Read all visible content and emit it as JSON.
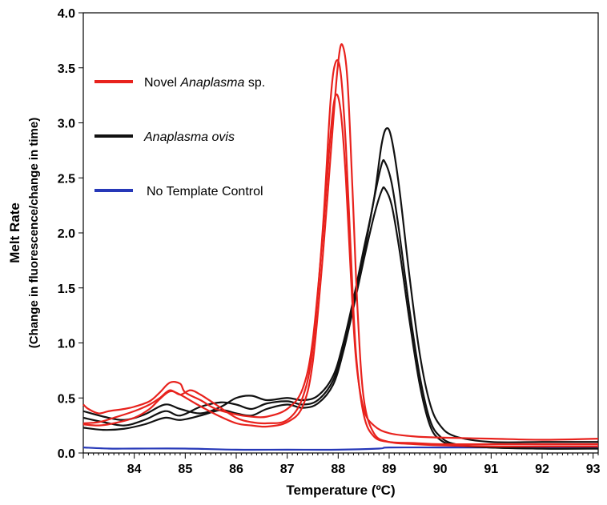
{
  "chart_data": {
    "type": "line",
    "title": "",
    "xlabel": "Temperature (ºC)",
    "ylabel_line1": "Melt Rate",
    "ylabel_line2": "(Change in fluorescence/change in time)",
    "xlim": [
      83.0,
      93.1
    ],
    "ylim": [
      0.0,
      4.0
    ],
    "x_ticks": [
      84,
      85,
      86,
      87,
      88,
      89,
      90,
      91,
      92,
      93
    ],
    "y_ticks": [
      0.0,
      0.5,
      1.0,
      1.5,
      2.0,
      2.5,
      3.0,
      3.5,
      4.0
    ],
    "y_tick_labels": [
      "0.0",
      "0.5",
      "1.0",
      "1.5",
      "2.0",
      "2.5",
      "3.0",
      "3.5",
      "4.0"
    ],
    "legend": [
      {
        "series_group": "novel",
        "label_pre": "Novel ",
        "label_italic": "Anaplasma",
        "label_post": " sp.",
        "color": "#e8221d"
      },
      {
        "series_group": "ovis",
        "label_pre": "",
        "label_italic": "Anaplasma ovis",
        "label_post": "",
        "color": "#111111"
      },
      {
        "series_group": "ntc",
        "label_pre": "No Template Control",
        "label_italic": "",
        "label_post": "",
        "color": "#2638b8"
      }
    ],
    "series": [
      {
        "name": "Novel Anaplasma sp. rep 1",
        "group": "novel",
        "color": "#e8221d",
        "points": [
          [
            83.0,
            0.44
          ],
          [
            83.1,
            0.4
          ],
          [
            83.3,
            0.36
          ],
          [
            83.5,
            0.38
          ],
          [
            83.8,
            0.4
          ],
          [
            84.0,
            0.42
          ],
          [
            84.3,
            0.47
          ],
          [
            84.5,
            0.55
          ],
          [
            84.7,
            0.64
          ],
          [
            84.9,
            0.63
          ],
          [
            85.0,
            0.55
          ],
          [
            85.3,
            0.48
          ],
          [
            85.6,
            0.4
          ],
          [
            86.0,
            0.35
          ],
          [
            86.3,
            0.33
          ],
          [
            86.6,
            0.33
          ],
          [
            87.0,
            0.4
          ],
          [
            87.3,
            0.58
          ],
          [
            87.5,
            1.02
          ],
          [
            87.7,
            2.0
          ],
          [
            87.85,
            2.9
          ],
          [
            87.95,
            3.25
          ],
          [
            88.05,
            3.1
          ],
          [
            88.15,
            2.5
          ],
          [
            88.25,
            1.6
          ],
          [
            88.35,
            0.85
          ],
          [
            88.5,
            0.4
          ],
          [
            88.7,
            0.25
          ],
          [
            89.0,
            0.18
          ],
          [
            89.5,
            0.15
          ],
          [
            90.0,
            0.14
          ],
          [
            91.0,
            0.13
          ],
          [
            92.0,
            0.12
          ],
          [
            93.1,
            0.13
          ]
        ]
      },
      {
        "name": "Novel Anaplasma sp. rep 2",
        "group": "novel",
        "color": "#e8221d",
        "points": [
          [
            83.0,
            0.27
          ],
          [
            83.3,
            0.28
          ],
          [
            83.6,
            0.32
          ],
          [
            84.0,
            0.38
          ],
          [
            84.3,
            0.44
          ],
          [
            84.5,
            0.5
          ],
          [
            84.7,
            0.57
          ],
          [
            84.9,
            0.53
          ],
          [
            85.1,
            0.57
          ],
          [
            85.3,
            0.53
          ],
          [
            85.6,
            0.44
          ],
          [
            86.0,
            0.32
          ],
          [
            86.3,
            0.28
          ],
          [
            86.6,
            0.27
          ],
          [
            87.0,
            0.3
          ],
          [
            87.3,
            0.5
          ],
          [
            87.5,
            0.95
          ],
          [
            87.7,
            2.05
          ],
          [
            87.85,
            3.2
          ],
          [
            87.95,
            3.55
          ],
          [
            88.05,
            3.45
          ],
          [
            88.15,
            2.8
          ],
          [
            88.25,
            1.8
          ],
          [
            88.35,
            0.9
          ],
          [
            88.5,
            0.35
          ],
          [
            88.7,
            0.15
          ],
          [
            89.0,
            0.1
          ],
          [
            89.5,
            0.09
          ],
          [
            90.0,
            0.08
          ],
          [
            91.0,
            0.08
          ],
          [
            92.0,
            0.08
          ],
          [
            93.1,
            0.08
          ]
        ]
      },
      {
        "name": "Novel Anaplasma sp. rep 3",
        "group": "novel",
        "color": "#e8221d",
        "points": [
          [
            83.0,
            0.26
          ],
          [
            83.3,
            0.25
          ],
          [
            83.6,
            0.27
          ],
          [
            84.0,
            0.32
          ],
          [
            84.3,
            0.4
          ],
          [
            84.5,
            0.49
          ],
          [
            84.7,
            0.56
          ],
          [
            84.9,
            0.53
          ],
          [
            85.2,
            0.45
          ],
          [
            85.6,
            0.35
          ],
          [
            86.0,
            0.27
          ],
          [
            86.3,
            0.25
          ],
          [
            86.6,
            0.24
          ],
          [
            87.0,
            0.28
          ],
          [
            87.3,
            0.42
          ],
          [
            87.5,
            0.82
          ],
          [
            87.7,
            1.8
          ],
          [
            87.9,
            3.0
          ],
          [
            88.0,
            3.55
          ],
          [
            88.08,
            3.71
          ],
          [
            88.18,
            3.4
          ],
          [
            88.28,
            2.4
          ],
          [
            88.38,
            1.3
          ],
          [
            88.5,
            0.5
          ],
          [
            88.7,
            0.18
          ],
          [
            89.0,
            0.1
          ],
          [
            89.5,
            0.08
          ],
          [
            90.0,
            0.07
          ],
          [
            91.0,
            0.06
          ],
          [
            92.0,
            0.06
          ],
          [
            93.1,
            0.06
          ]
        ]
      },
      {
        "name": "Anaplasma ovis rep 1",
        "group": "ovis",
        "color": "#111111",
        "points": [
          [
            83.0,
            0.38
          ],
          [
            83.4,
            0.33
          ],
          [
            83.8,
            0.3
          ],
          [
            84.2,
            0.35
          ],
          [
            84.6,
            0.44
          ],
          [
            84.9,
            0.4
          ],
          [
            85.3,
            0.36
          ],
          [
            85.7,
            0.42
          ],
          [
            86.0,
            0.5
          ],
          [
            86.3,
            0.52
          ],
          [
            86.6,
            0.48
          ],
          [
            87.0,
            0.5
          ],
          [
            87.3,
            0.48
          ],
          [
            87.6,
            0.52
          ],
          [
            87.9,
            0.7
          ],
          [
            88.1,
            1.0
          ],
          [
            88.3,
            1.4
          ],
          [
            88.5,
            1.85
          ],
          [
            88.7,
            2.3
          ],
          [
            88.85,
            2.8
          ],
          [
            88.95,
            2.95
          ],
          [
            89.05,
            2.85
          ],
          [
            89.2,
            2.4
          ],
          [
            89.4,
            1.6
          ],
          [
            89.6,
            0.9
          ],
          [
            89.8,
            0.45
          ],
          [
            90.0,
            0.25
          ],
          [
            90.3,
            0.15
          ],
          [
            91.0,
            0.1
          ],
          [
            92.0,
            0.1
          ],
          [
            93.1,
            0.1
          ]
        ]
      },
      {
        "name": "Anaplasma ovis rep 2",
        "group": "ovis",
        "color": "#111111",
        "points": [
          [
            83.0,
            0.32
          ],
          [
            83.4,
            0.28
          ],
          [
            83.8,
            0.25
          ],
          [
            84.2,
            0.3
          ],
          [
            84.6,
            0.38
          ],
          [
            84.9,
            0.34
          ],
          [
            85.3,
            0.42
          ],
          [
            85.7,
            0.46
          ],
          [
            86.0,
            0.44
          ],
          [
            86.3,
            0.4
          ],
          [
            86.6,
            0.45
          ],
          [
            87.0,
            0.47
          ],
          [
            87.3,
            0.44
          ],
          [
            87.6,
            0.48
          ],
          [
            87.9,
            0.66
          ],
          [
            88.1,
            0.95
          ],
          [
            88.3,
            1.35
          ],
          [
            88.5,
            1.8
          ],
          [
            88.7,
            2.3
          ],
          [
            88.85,
            2.62
          ],
          [
            88.92,
            2.64
          ],
          [
            89.05,
            2.45
          ],
          [
            89.2,
            2.0
          ],
          [
            89.4,
            1.3
          ],
          [
            89.6,
            0.7
          ],
          [
            89.8,
            0.3
          ],
          [
            90.0,
            0.15
          ],
          [
            90.3,
            0.08
          ],
          [
            91.0,
            0.05
          ],
          [
            92.0,
            0.04
          ],
          [
            93.1,
            0.04
          ]
        ]
      },
      {
        "name": "Anaplasma ovis rep 3",
        "group": "ovis",
        "color": "#111111",
        "points": [
          [
            83.0,
            0.23
          ],
          [
            83.4,
            0.21
          ],
          [
            83.8,
            0.22
          ],
          [
            84.2,
            0.26
          ],
          [
            84.6,
            0.32
          ],
          [
            84.9,
            0.3
          ],
          [
            85.3,
            0.34
          ],
          [
            85.7,
            0.39
          ],
          [
            86.0,
            0.36
          ],
          [
            86.3,
            0.34
          ],
          [
            86.6,
            0.4
          ],
          [
            87.0,
            0.44
          ],
          [
            87.3,
            0.41
          ],
          [
            87.6,
            0.45
          ],
          [
            87.9,
            0.62
          ],
          [
            88.1,
            0.92
          ],
          [
            88.3,
            1.32
          ],
          [
            88.5,
            1.75
          ],
          [
            88.7,
            2.15
          ],
          [
            88.85,
            2.38
          ],
          [
            88.92,
            2.4
          ],
          [
            89.05,
            2.25
          ],
          [
            89.2,
            1.85
          ],
          [
            89.4,
            1.2
          ],
          [
            89.6,
            0.62
          ],
          [
            89.8,
            0.25
          ],
          [
            90.0,
            0.12
          ],
          [
            90.3,
            0.07
          ],
          [
            91.0,
            0.05
          ],
          [
            92.0,
            0.04
          ],
          [
            93.1,
            0.04
          ]
        ]
      },
      {
        "name": "No Template Control",
        "group": "ntc",
        "color": "#2638b8",
        "points": [
          [
            83.0,
            0.05
          ],
          [
            83.5,
            0.04
          ],
          [
            84.0,
            0.04
          ],
          [
            85.0,
            0.04
          ],
          [
            86.0,
            0.03
          ],
          [
            87.0,
            0.03
          ],
          [
            88.0,
            0.03
          ],
          [
            88.8,
            0.04
          ],
          [
            89.0,
            0.05
          ],
          [
            90.0,
            0.05
          ],
          [
            91.0,
            0.05
          ],
          [
            92.0,
            0.05
          ],
          [
            93.1,
            0.05
          ]
        ]
      }
    ]
  }
}
